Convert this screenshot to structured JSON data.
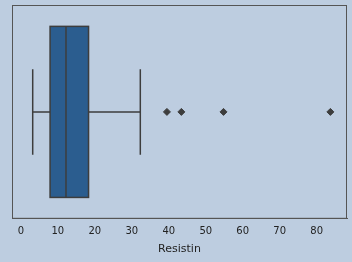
{
  "chart_data": {
    "type": "box",
    "x_label": "Resistin",
    "box": {
      "whisker_low": 3.2,
      "q1": 7.9,
      "median": 12.2,
      "q3": 18.3,
      "whisker_high": 32.3
    },
    "outliers": [
      39.5,
      43.4,
      54.8,
      83.7
    ],
    "color": "#2b5d8f",
    "xlim": [
      -2.4,
      88.2
    ],
    "xticks": [
      0,
      10,
      20,
      30,
      40,
      50,
      60,
      70,
      80
    ],
    "tick_labels": "x",
    "grid": false
  }
}
